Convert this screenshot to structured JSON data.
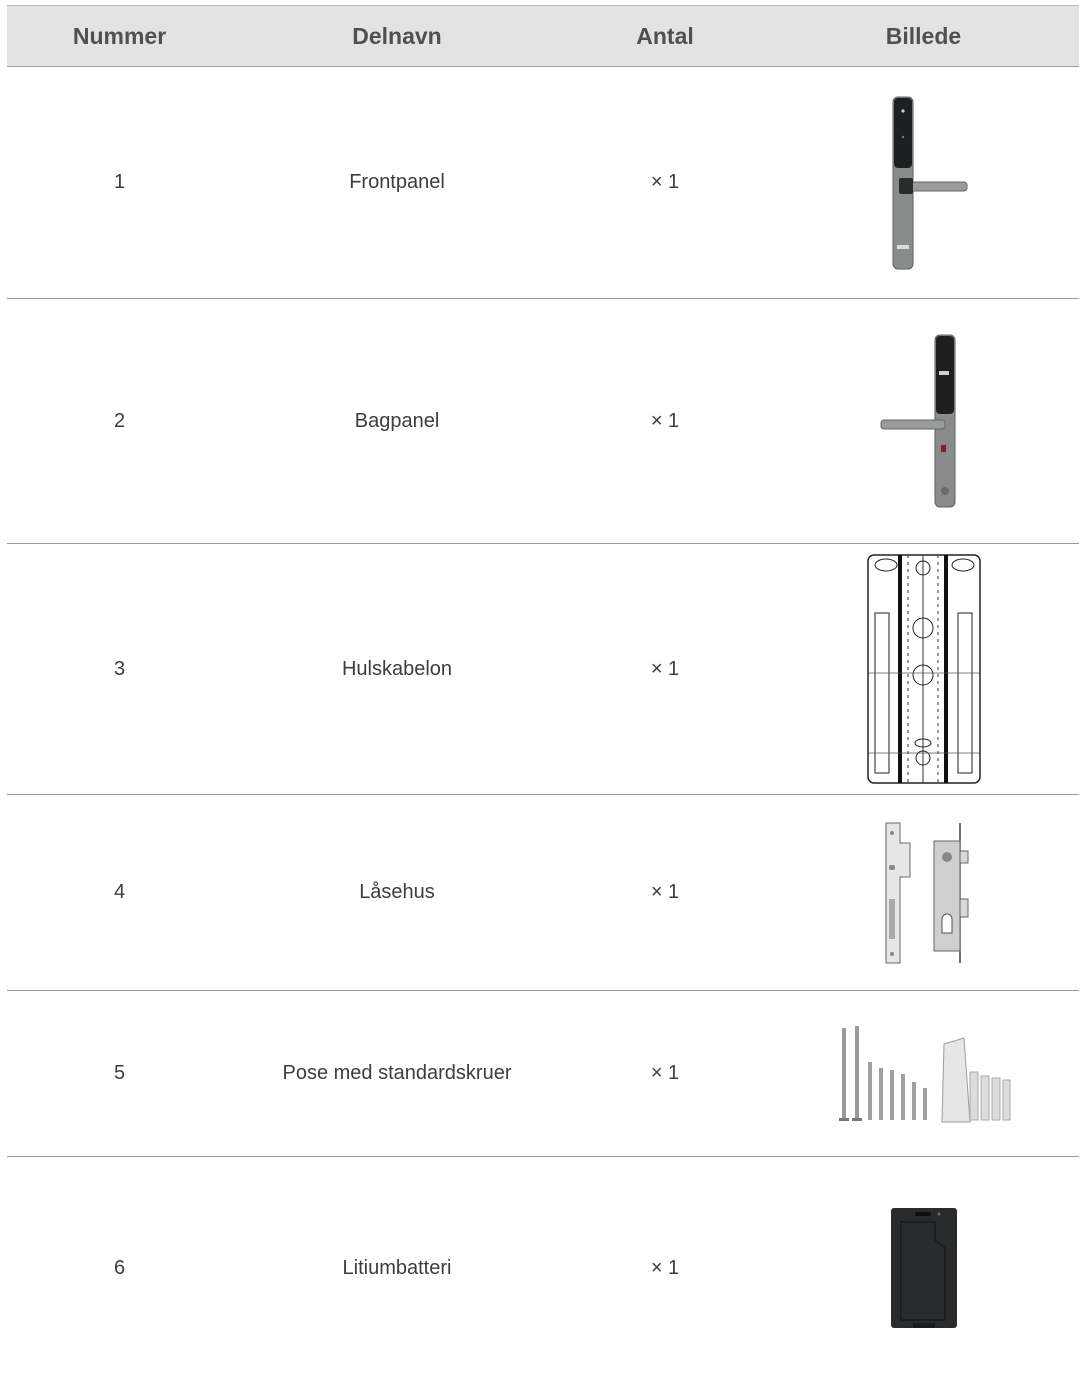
{
  "headers": {
    "number": "Nummer",
    "part": "Delnavn",
    "qty": "Antal",
    "image": "Billede"
  },
  "rows": [
    {
      "number": "1",
      "part": "Frontpanel",
      "qty": "× 1",
      "image_icon": "front-panel-image"
    },
    {
      "number": "2",
      "part": "Bagpanel",
      "qty": "× 1",
      "image_icon": "back-panel-image"
    },
    {
      "number": "3",
      "part": "Hulskabelon",
      "qty": "× 1",
      "image_icon": "drilling-template-image"
    },
    {
      "number": "4",
      "part": "Låsehus",
      "qty": "× 1",
      "image_icon": "lock-body-image"
    },
    {
      "number": "5",
      "part": "Pose med standardskruer",
      "qty": "× 1",
      "image_icon": "screw-bag-image"
    },
    {
      "number": "6",
      "part": "Litiumbatteri",
      "qty": "× 1",
      "image_icon": "lithium-battery-image"
    }
  ]
}
